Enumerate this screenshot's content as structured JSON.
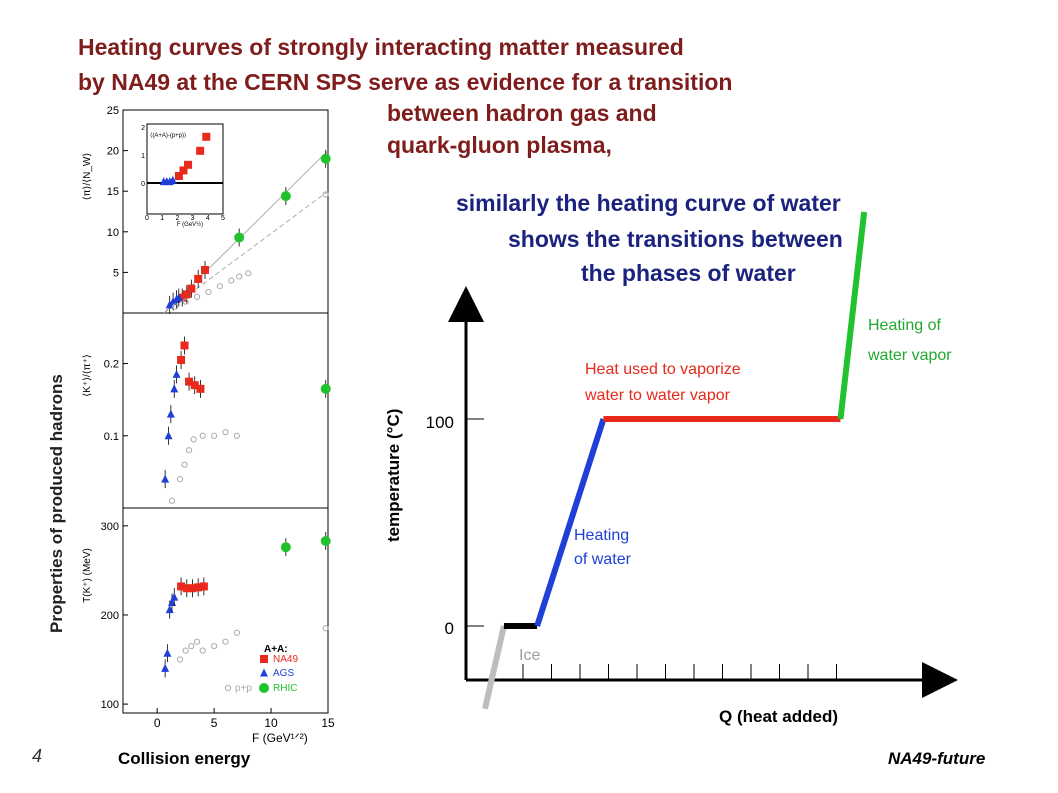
{
  "header": {
    "title_lines": [
      "Heating  curves of strongly interacting matter measured",
      "by NA49 at the CERN SPS serve as evidence for a transition",
      "between hadron gas and",
      "quark-gluon plasma,"
    ],
    "subtitle_lines": [
      "similarly the heating curve of water",
      "shows the transitions between",
      "the phases of water"
    ]
  },
  "left_panel": {
    "ylabel": "Properties of produced hadrons",
    "xlabel": "Collision energy"
  },
  "footer": {
    "page_number": "4",
    "tag": "NA49-future"
  },
  "colors": {
    "title": "#7f1d1d",
    "subtitle": "#1a237e",
    "na49": "#e8291c",
    "ags": "#1f3fd6",
    "rhic": "#22c22e",
    "ice": "#bdbdbd"
  },
  "chart_data": [
    {
      "type": "line",
      "title": "",
      "xlabel": "Q (heat added)",
      "ylabel": "temperature (°C)",
      "yticks": [
        "0",
        "100"
      ],
      "series": [
        {
          "name": "Ice",
          "color": "#bdbdbd",
          "points": [
            [
              0.04,
              -40
            ],
            [
              0.08,
              0
            ]
          ]
        },
        {
          "name": "",
          "color": "#000000",
          "points": [
            [
              0.08,
              0
            ],
            [
              0.15,
              0
            ]
          ]
        },
        {
          "name": "Heating of water",
          "color": "#1f3fd6",
          "points": [
            [
              0.15,
              0
            ],
            [
              0.29,
              100
            ]
          ]
        },
        {
          "name": "Heat used to vaporize water to water vapor",
          "color": "#e8291c",
          "points": [
            [
              0.29,
              100
            ],
            [
              0.79,
              100
            ]
          ]
        },
        {
          "name": "Heating of water vapor",
          "color": "#22c22e",
          "points": [
            [
              0.79,
              100
            ],
            [
              0.84,
              200
            ]
          ]
        }
      ],
      "annotations": {
        "ice": "Ice",
        "heating_water_1": "Heating",
        "heating_water_2": "of water",
        "vaporize_1": "Heat used to vaporize",
        "vaporize_2": "water to water vapor",
        "vapor_1": "Heating of",
        "vapor_2": "water vapor"
      }
    },
    {
      "type": "scatter",
      "title": "",
      "xlabel": "",
      "ylabel": "⟨π⟩/⟨N_W⟩",
      "ylim": [
        0,
        25
      ],
      "yticks": [
        "5",
        "10",
        "15",
        "20",
        "25"
      ],
      "series": [
        {
          "name": "NA49",
          "color": "#e8291c",
          "points": [
            [
              2.2,
              1.9
            ],
            [
              2.6,
              2.3
            ],
            [
              3.0,
              3.0
            ],
            [
              3.6,
              4.2
            ],
            [
              4.2,
              5.3
            ]
          ]
        },
        {
          "name": "AGS",
          "color": "#1f3fd6",
          "points": [
            [
              1.1,
              1.0
            ],
            [
              1.4,
              1.4
            ],
            [
              1.7,
              1.7
            ],
            [
              1.9,
              1.9
            ]
          ]
        },
        {
          "name": "RHIC",
          "color": "#22c22e",
          "points": [
            [
              7.2,
              9.3
            ],
            [
              11.3,
              14.4
            ],
            [
              14.8,
              19.0
            ]
          ]
        },
        {
          "name": "p+p",
          "color": "#aaaaaa",
          "points": [
            [
              1.6,
              0.8
            ],
            [
              2.5,
              1.4
            ],
            [
              3.5,
              2.0
            ],
            [
              4.5,
              2.6
            ],
            [
              5.5,
              3.3
            ],
            [
              6.5,
              4.0
            ],
            [
              7.2,
              4.5
            ],
            [
              8.0,
              4.9
            ],
            [
              14.8,
              14.6
            ]
          ]
        }
      ],
      "inset": {
        "label": "⟨(A+A)-(p+p)⟩",
        "xlabel": "F (GeV½)",
        "xticks": [
          "0",
          "1",
          "2",
          "3",
          "4",
          "5"
        ],
        "yticks": [
          "0",
          "1",
          "2"
        ],
        "series": [
          {
            "name": "AGS",
            "color": "#1f3fd6",
            "points": [
              [
                1.1,
                0.05
              ],
              [
                1.3,
                0.05
              ],
              [
                1.5,
                0.05
              ],
              [
                1.7,
                0.1
              ]
            ]
          },
          {
            "name": "NA49",
            "color": "#e8291c",
            "points": [
              [
                2.1,
                0.25
              ],
              [
                2.4,
                0.45
              ],
              [
                2.7,
                0.65
              ],
              [
                3.5,
                1.15
              ],
              [
                3.9,
                1.65
              ]
            ]
          }
        ]
      }
    },
    {
      "type": "scatter",
      "title": "",
      "xlabel": "",
      "ylabel": "⟨K⁺⟩/⟨π⁺⟩",
      "ylim": [
        0,
        0.27
      ],
      "yticks": [
        "0.1",
        "0.2"
      ],
      "series": [
        {
          "name": "NA49",
          "color": "#e8291c",
          "points": [
            [
              2.1,
              0.205
            ],
            [
              2.4,
              0.225
            ],
            [
              2.8,
              0.175
            ],
            [
              3.3,
              0.17
            ],
            [
              3.8,
              0.165
            ]
          ]
        },
        {
          "name": "AGS",
          "color": "#1f3fd6",
          "points": [
            [
              0.7,
              0.04
            ],
            [
              1.0,
              0.1
            ],
            [
              1.2,
              0.13
            ],
            [
              1.5,
              0.165
            ],
            [
              1.7,
              0.185
            ]
          ]
        },
        {
          "name": "RHIC",
          "color": "#22c22e",
          "points": [
            [
              14.8,
              0.165
            ]
          ]
        },
        {
          "name": "p+p",
          "color": "#aaaaaa",
          "points": [
            [
              1.3,
              0.01
            ],
            [
              2.0,
              0.04
            ],
            [
              2.4,
              0.06
            ],
            [
              2.8,
              0.08
            ],
            [
              3.2,
              0.095
            ],
            [
              4.0,
              0.1
            ],
            [
              5.0,
              0.1
            ],
            [
              6.0,
              0.105
            ],
            [
              7.0,
              0.1
            ]
          ]
        }
      ]
    },
    {
      "type": "scatter",
      "title": "",
      "xlabel": "F (GeV¹ᐟ²)",
      "ylabel": "T(K⁺) (MeV)",
      "ylim": [
        90,
        320
      ],
      "xlim": [
        -3,
        15
      ],
      "xticks": [
        "0",
        "5",
        "10",
        "15"
      ],
      "yticks": [
        "100",
        "200",
        "300"
      ],
      "series": [
        {
          "name": "NA49",
          "color": "#e8291c",
          "points": [
            [
              2.1,
              232
            ],
            [
              2.6,
              230
            ],
            [
              3.1,
              230
            ],
            [
              3.6,
              231
            ],
            [
              4.1,
              232
            ]
          ]
        },
        {
          "name": "AGS",
          "color": "#1f3fd6",
          "points": [
            [
              0.7,
              140
            ],
            [
              0.9,
              157
            ],
            [
              1.1,
              206
            ],
            [
              1.3,
              214
            ],
            [
              1.5,
              220
            ]
          ]
        },
        {
          "name": "RHIC",
          "color": "#22c22e",
          "points": [
            [
              11.3,
              276
            ],
            [
              14.8,
              283
            ]
          ]
        },
        {
          "name": "p+p",
          "color": "#aaaaaa",
          "points": [
            [
              2.0,
              150
            ],
            [
              2.5,
              160
            ],
            [
              3.0,
              165
            ],
            [
              3.5,
              170
            ],
            [
              4.0,
              160
            ],
            [
              5.0,
              165
            ],
            [
              6.0,
              170
            ],
            [
              7.0,
              180
            ],
            [
              14.8,
              185
            ]
          ]
        }
      ],
      "legend": {
        "header": "A+A:",
        "entries": [
          "NA49",
          "AGS",
          "RHIC"
        ],
        "extra": "p+p"
      }
    }
  ]
}
